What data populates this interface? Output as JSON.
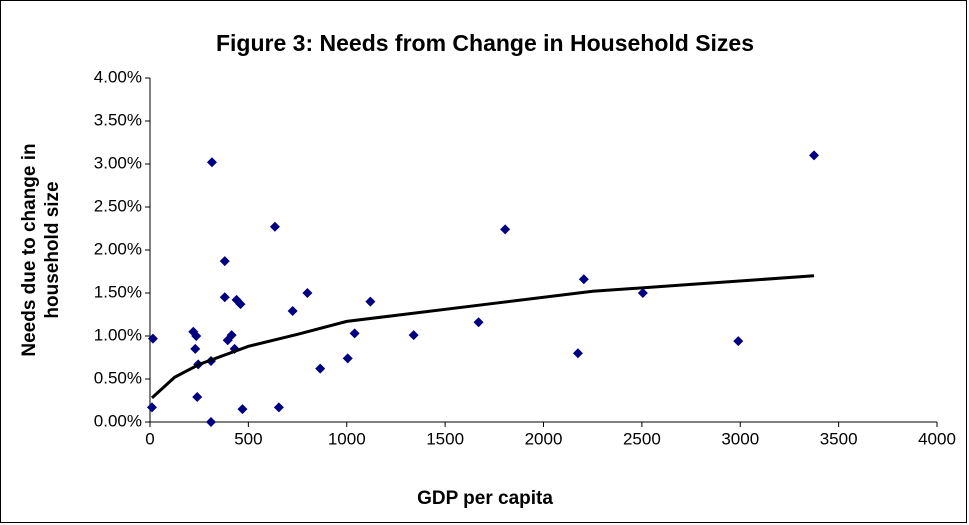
{
  "chart_data": {
    "type": "scatter",
    "title": "Figure 3: Needs from Change in Household Sizes",
    "xlabel": "GDP per capita",
    "ylabel": [
      "Needs due to change in",
      "household size"
    ],
    "xlim": [
      0,
      4000
    ],
    "xticks": [
      0,
      500,
      1000,
      1500,
      2000,
      2500,
      3000,
      3500,
      4000
    ],
    "ylim": [
      0,
      4
    ],
    "yticks": [
      {
        "value": 0,
        "label": "0.00%"
      },
      {
        "value": 0.5,
        "label": "0.50%"
      },
      {
        "value": 1,
        "label": "1.00%"
      },
      {
        "value": 1.5,
        "label": "1.50%"
      },
      {
        "value": 2,
        "label": "2.00%"
      },
      {
        "value": 2.5,
        "label": "2.50%"
      },
      {
        "value": 3,
        "label": "3.00%"
      },
      {
        "value": 3.5,
        "label": "3.50%"
      },
      {
        "value": 4,
        "label": "4.00%"
      }
    ],
    "series": [
      {
        "color": "#000080",
        "marker": "diamond",
        "x": [
          10,
          15,
          220,
          235,
          230,
          245,
          240,
          315,
          310,
          310,
          380,
          380,
          395,
          415,
          430,
          440,
          460,
          470,
          635,
          655,
          725,
          800,
          865,
          1005,
          1040,
          1120,
          1340,
          1670,
          1805,
          2175,
          2205,
          2505,
          2990,
          3375
        ],
        "values": [
          0.17,
          0.97,
          1.05,
          1.0,
          0.85,
          0.67,
          0.29,
          3.02,
          0.71,
          0.0,
          1.87,
          1.45,
          0.95,
          1.01,
          0.85,
          1.42,
          1.37,
          0.15,
          2.27,
          0.17,
          1.29,
          1.5,
          0.62,
          0.74,
          1.03,
          1.4,
          1.01,
          1.16,
          2.24,
          0.8,
          1.66,
          1.5,
          0.94,
          3.1
        ]
      },
      {
        "color": "#000000",
        "marker": "line",
        "x": [
          10,
          125,
          250,
          500,
          750,
          1000,
          1250,
          1750,
          2250,
          2750,
          3375
        ],
        "values": [
          0.28,
          0.52,
          0.67,
          0.88,
          1.02,
          1.17,
          1.24,
          1.38,
          1.52,
          1.6,
          1.7
        ]
      }
    ]
  }
}
